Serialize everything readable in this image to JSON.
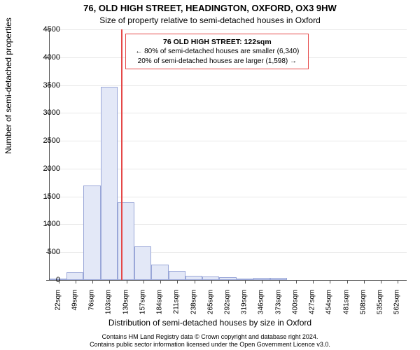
{
  "title_main": "76, OLD HIGH STREET, HEADINGTON, OXFORD, OX3 9HW",
  "title_sub": "Size of property relative to semi-detached houses in Oxford",
  "x_axis_title": "Distribution of semi-detached houses by size in Oxford",
  "y_axis_title": "Number of semi-detached properties",
  "footer_line1": "Contains HM Land Registry data © Crown copyright and database right 2024.",
  "footer_line2": "Contains public sector information licensed under the Open Government Licence v3.0.",
  "chart": {
    "type": "histogram",
    "ylim": [
      0,
      4500
    ],
    "ytick_step": 500,
    "yticks": [
      0,
      500,
      1000,
      1500,
      2000,
      2500,
      3000,
      3500,
      4000,
      4500
    ],
    "xlim": [
      8,
      576
    ],
    "x_tick_start": 22,
    "x_tick_step": 27,
    "x_tick_count": 21,
    "x_tick_unit": "sqm",
    "bar_width_sqm": 27,
    "bars": [
      {
        "x_start": 8,
        "value": 2
      },
      {
        "x_start": 35,
        "value": 140
      },
      {
        "x_start": 62,
        "value": 1700
      },
      {
        "x_start": 89,
        "value": 3470
      },
      {
        "x_start": 116,
        "value": 1400
      },
      {
        "x_start": 143,
        "value": 600
      },
      {
        "x_start": 170,
        "value": 280
      },
      {
        "x_start": 197,
        "value": 160
      },
      {
        "x_start": 224,
        "value": 80
      },
      {
        "x_start": 251,
        "value": 60
      },
      {
        "x_start": 278,
        "value": 50
      },
      {
        "x_start": 305,
        "value": 30
      },
      {
        "x_start": 332,
        "value": 40
      },
      {
        "x_start": 359,
        "value": 40
      },
      {
        "x_start": 386,
        "value": 0
      },
      {
        "x_start": 413,
        "value": 0
      },
      {
        "x_start": 440,
        "value": 0
      },
      {
        "x_start": 467,
        "value": 0
      },
      {
        "x_start": 494,
        "value": 0
      },
      {
        "x_start": 521,
        "value": 0
      },
      {
        "x_start": 548,
        "value": 0
      }
    ],
    "refline_x": 122,
    "bar_fill": "#e3e8f7",
    "bar_stroke": "#9aa7d8",
    "grid_color": "#e8e8e8",
    "ref_color": "#e54848",
    "background": "#ffffff",
    "annot_box": {
      "title": "76 OLD HIGH STREET: 122sqm",
      "line_left": "← 80% of semi-detached houses are smaller (6,340)",
      "line_right": "20% of semi-detached houses are larger (1,598) →"
    },
    "title_fontsize": 13,
    "sub_fontsize": 12,
    "label_fontsize": 12,
    "tick_fontsize": 11,
    "xtick_fontsize": 10,
    "annot_fontsize": 10
  }
}
